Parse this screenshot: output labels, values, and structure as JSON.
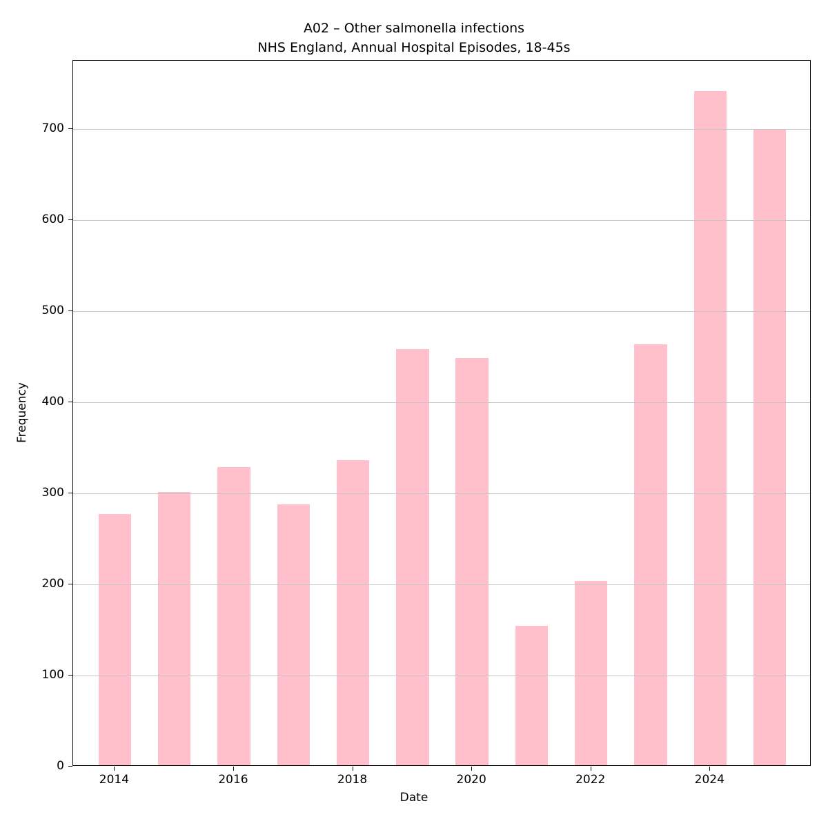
{
  "chart": {
    "title_line1": "A02 – Other salmonella infections",
    "title_line2": "NHS England, Annual Hospital Episodes, 18-45s",
    "xlabel": "Date",
    "ylabel": "Frequency"
  },
  "chart_data": {
    "type": "bar",
    "title": "A02 – Other salmonella infections\nNHS England, Annual Hospital Episodes, 18-45s",
    "xlabel": "Date",
    "ylabel": "Frequency",
    "categories": [
      2014,
      2015,
      2016,
      2017,
      2018,
      2019,
      2020,
      2021,
      2022,
      2023,
      2024,
      2025
    ],
    "values": [
      276,
      300,
      327,
      286,
      335,
      457,
      447,
      153,
      202,
      462,
      740,
      698
    ],
    "ylim": [
      0,
      775
    ],
    "yticks": [
      0,
      100,
      200,
      300,
      400,
      500,
      600,
      700
    ],
    "xticks": [
      2014,
      2016,
      2018,
      2020,
      2022,
      2024
    ],
    "xlim": [
      2013.3,
      2025.7
    ],
    "bar_width_years": 0.55,
    "bar_color": "#ffc0cb",
    "grid": true,
    "grid_color": "#c3c7cb",
    "legend": "none"
  }
}
